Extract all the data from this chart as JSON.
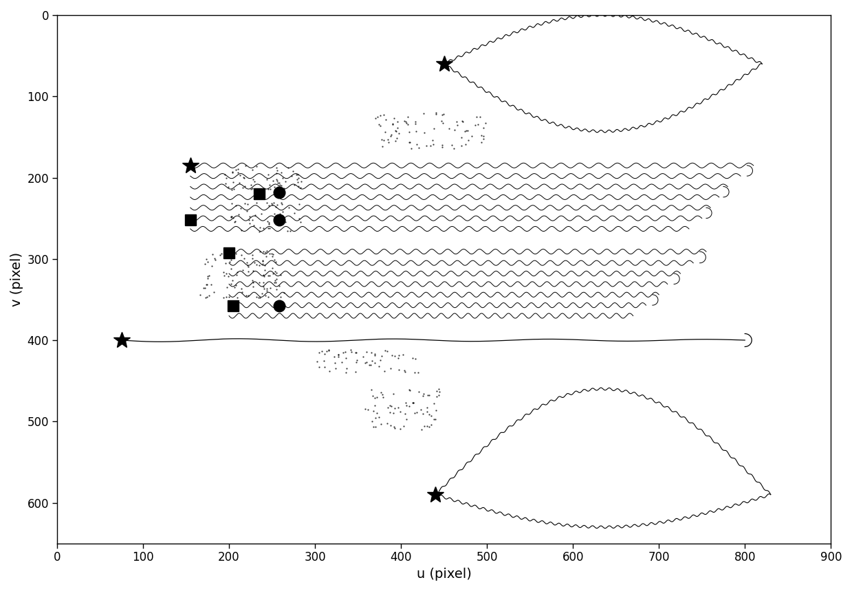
{
  "xlim": [
    0,
    900
  ],
  "ylim": [
    650,
    0
  ],
  "xlabel": "u (pixel)",
  "ylabel": "v (pixel)",
  "xticks": [
    0,
    100,
    200,
    300,
    400,
    500,
    600,
    700,
    800,
    900
  ],
  "yticks": [
    0,
    100,
    200,
    300,
    400,
    500,
    600
  ],
  "background_color": "#ffffff",
  "star_markers": [
    [
      450,
      60
    ],
    [
      155,
      185
    ],
    [
      75,
      400
    ],
    [
      440,
      590
    ]
  ],
  "square_markers": [
    [
      235,
      220
    ],
    [
      155,
      252
    ],
    [
      200,
      293
    ],
    [
      205,
      358
    ]
  ],
  "circle_markers": [
    [
      258,
      218
    ],
    [
      258,
      252
    ],
    [
      258,
      358
    ]
  ],
  "line_color": "#000000"
}
